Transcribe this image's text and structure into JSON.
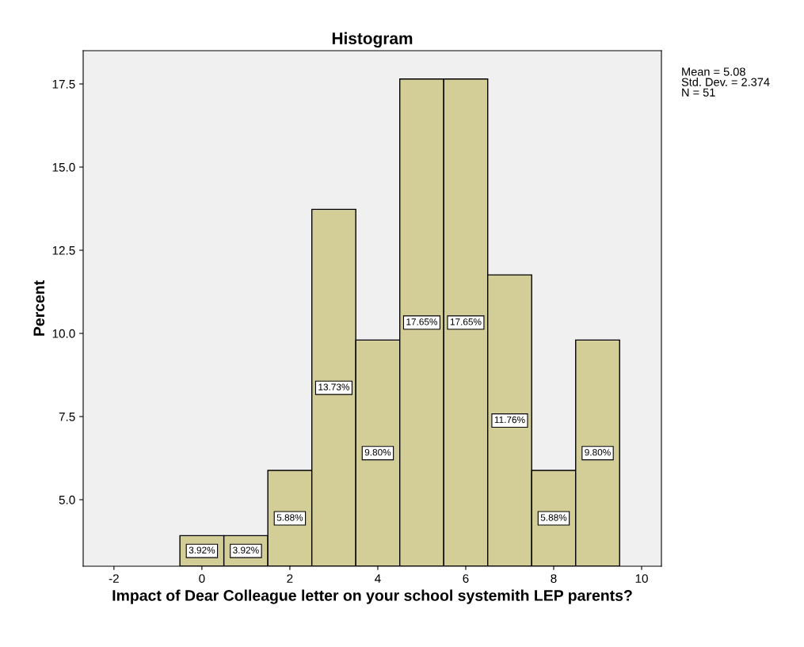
{
  "chart_data": {
    "type": "histogram",
    "title": "Histogram",
    "xlabel": "Impact of Dear Colleague letter on your school systemith LEP parents?",
    "ylabel": "Percent",
    "bins": [
      -0.5,
      0.5,
      1.5,
      2.5,
      3.5,
      4.5,
      5.5,
      6.5,
      7.5,
      8.5,
      9.5
    ],
    "values": [
      3.92,
      3.92,
      5.88,
      13.73,
      9.8,
      17.65,
      17.65,
      11.76,
      5.88,
      9.8
    ],
    "value_labels": [
      "3.92%",
      "3.92%",
      "5.88%",
      "13.73%",
      "9.80%",
      "17.65%",
      "17.65%",
      "11.76%",
      "5.88%",
      "9.80%"
    ],
    "color": "#d3ce97",
    "xlim": [
      -2.7,
      10.45
    ],
    "ylim": [
      3.0,
      18.5
    ],
    "xticks": [
      -2,
      0,
      2,
      4,
      6,
      8,
      10
    ],
    "yticks": [
      {
        "value": 5,
        "label": "5.0"
      },
      {
        "value": 7.5,
        "label": "7.5"
      },
      {
        "value": 10,
        "label": "10.0"
      },
      {
        "value": 12.5,
        "label": "12.5"
      },
      {
        "value": 15,
        "label": "15.0"
      },
      {
        "value": 17.5,
        "label": "17.5"
      }
    ],
    "annotations": [
      "Mean = 5.08\nStd. Dev. = 2.374\nN = 51"
    ],
    "grid": false,
    "legend": false
  }
}
